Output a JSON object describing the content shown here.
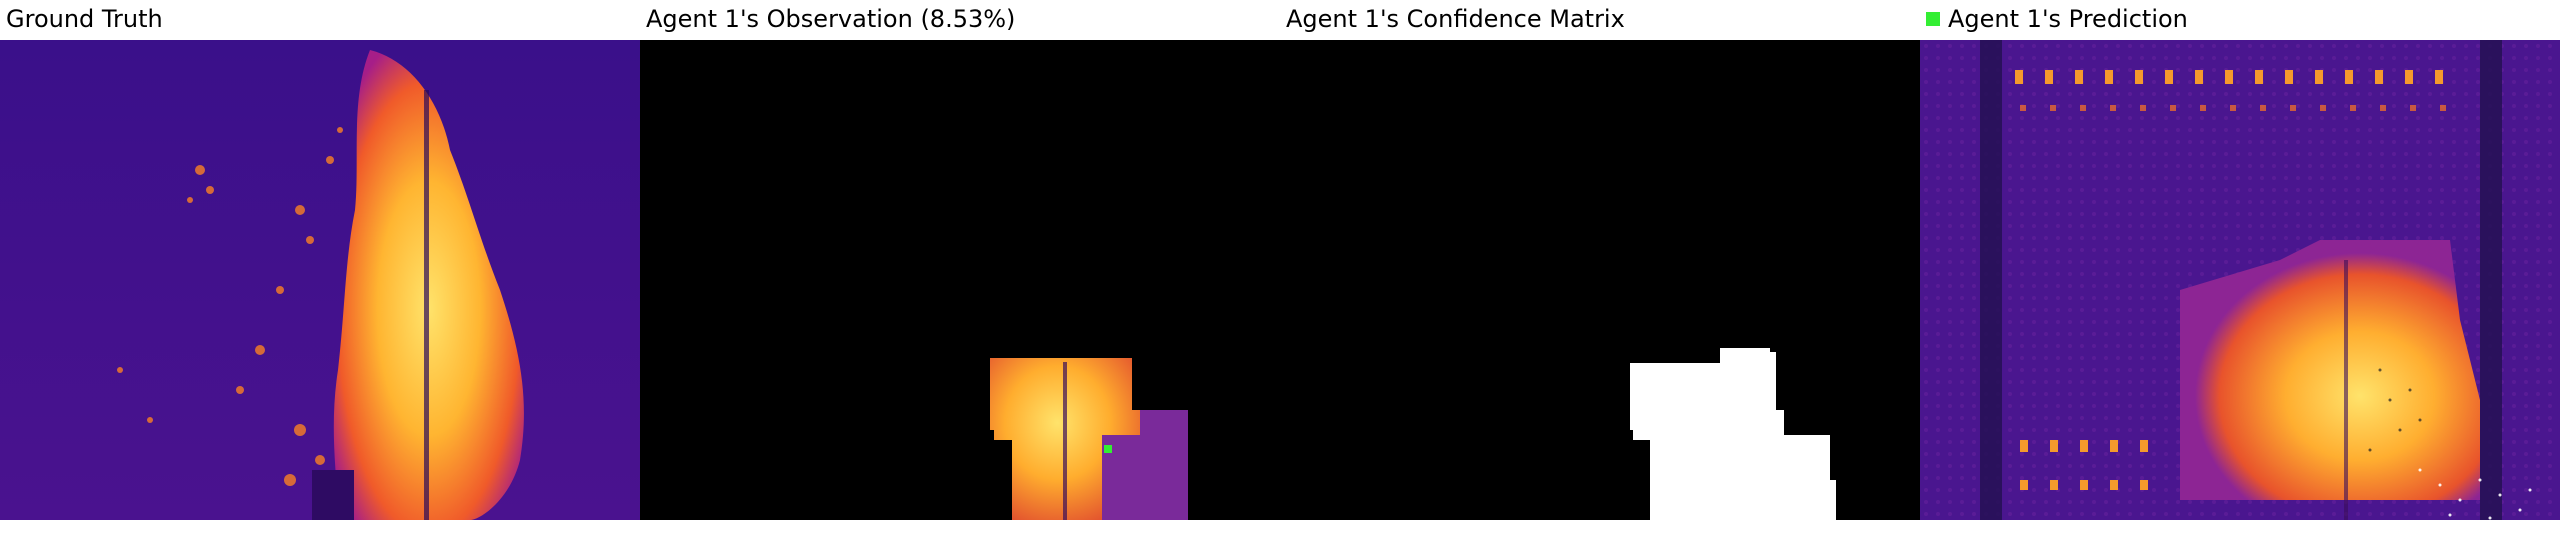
{
  "panels": {
    "ground_truth": {
      "title": "Ground Truth"
    },
    "observation": {
      "title": "Agent 1's Observation (8.53%)"
    },
    "confidence": {
      "title": "Agent 1's Confidence Matrix"
    },
    "prediction": {
      "title": "Agent 1's Prediction",
      "legend_color": "#33ee33"
    }
  },
  "colors": {
    "background": "#ffffff",
    "thermal_dark": "#3d108a",
    "thermal_mid": "#8a1f9a",
    "thermal_hot": "#f06a2a",
    "thermal_peak": "#ffd84a",
    "mask_black": "#000000",
    "mask_white": "#ffffff",
    "agent_marker": "#33ee33"
  }
}
